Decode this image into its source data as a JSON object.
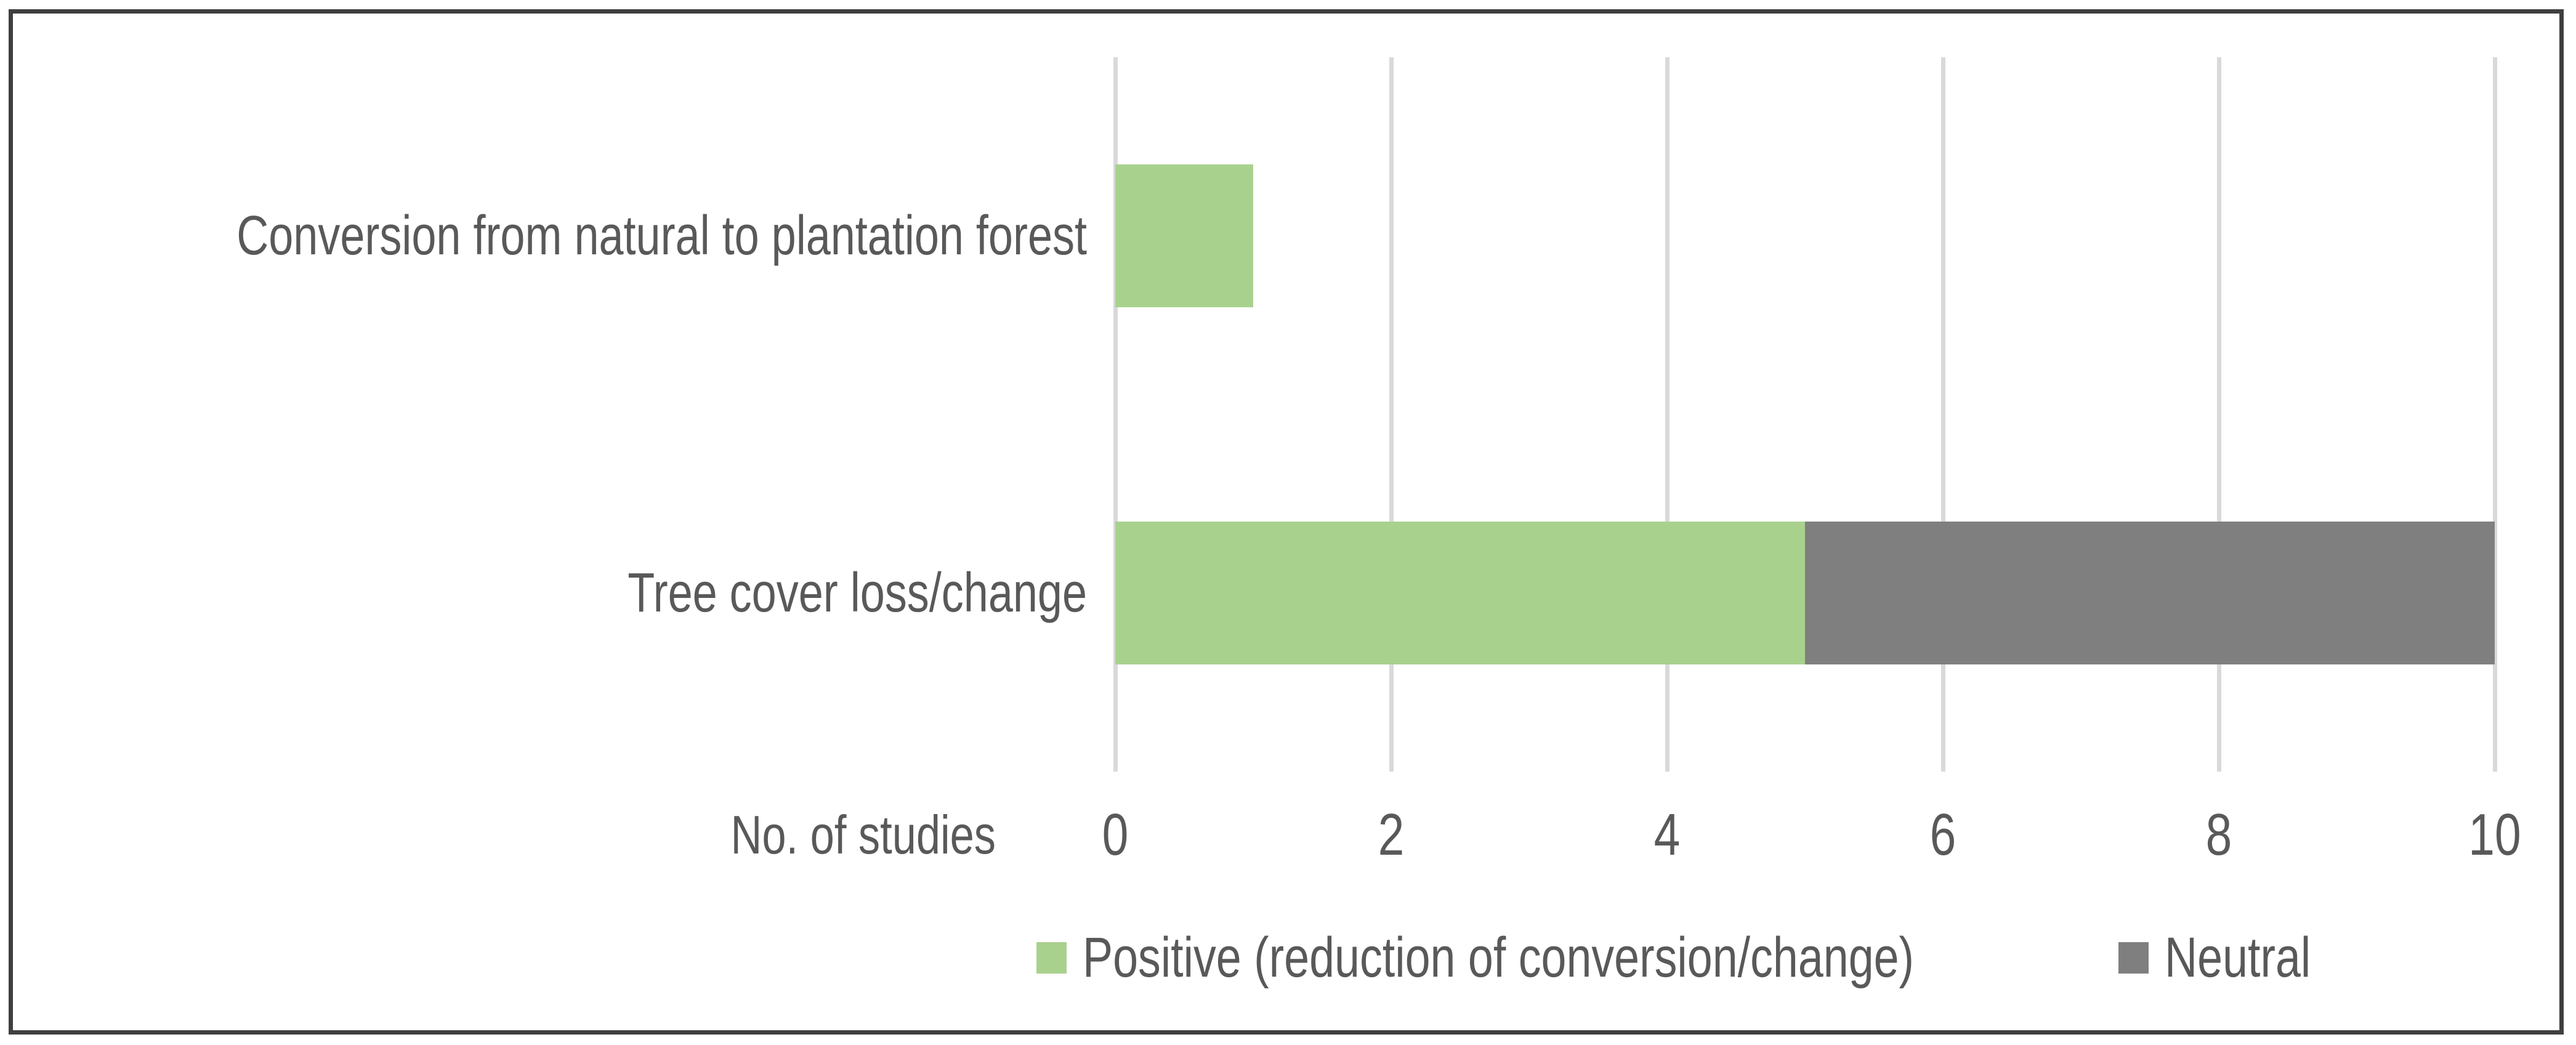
{
  "chart_data": {
    "type": "bar",
    "orientation": "horizontal",
    "stacked": true,
    "categories": [
      "Conversion from natural to plantation forest",
      "Tree cover loss/change"
    ],
    "series": [
      {
        "name": "Positive (reduction of conversion/change)",
        "color": "#A9D18E",
        "values": [
          1,
          5
        ]
      },
      {
        "name": "Neutral",
        "color": "#7F7F7F",
        "values": [
          0,
          5
        ]
      }
    ],
    "xlabel": "No. of studies",
    "xlim": [
      0,
      10
    ],
    "xticks": [
      0,
      2,
      4,
      6,
      8,
      10
    ],
    "grid": "vertical",
    "legend_position": "bottom",
    "title": ""
  },
  "colors": {
    "text": "#595959",
    "gridline": "#D9D9D9",
    "frame_border": "#3F3F3F",
    "background": "#FFFFFF"
  }
}
